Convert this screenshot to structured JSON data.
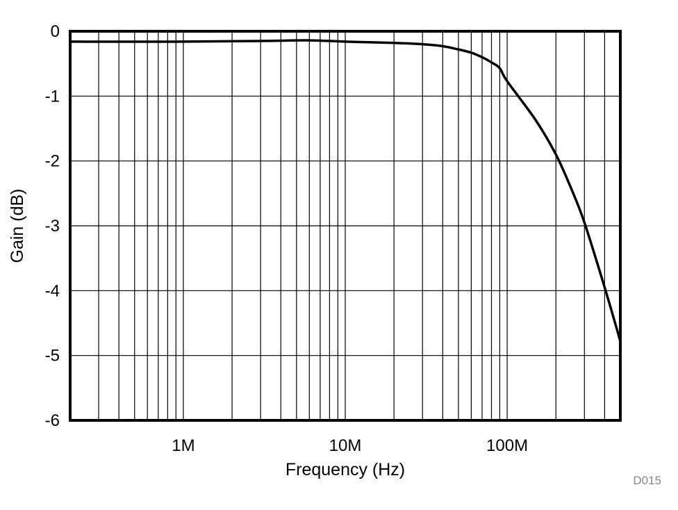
{
  "chart_data": {
    "type": "line",
    "title": "",
    "xlabel": "Frequency (Hz)",
    "ylabel": "Gain (dB)",
    "xscale": "log",
    "xlim": [
      200000,
      500000000
    ],
    "ylim": [
      -6,
      0
    ],
    "grid": true,
    "x_ticks": [
      {
        "value": 1000000,
        "label": "1M"
      },
      {
        "value": 10000000,
        "label": "10M"
      },
      {
        "value": 100000000,
        "label": "100M"
      }
    ],
    "y_ticks": [
      {
        "value": 0,
        "label": "0"
      },
      {
        "value": -1,
        "label": "-1"
      },
      {
        "value": -2,
        "label": "-2"
      },
      {
        "value": -3,
        "label": "-3"
      },
      {
        "value": -4,
        "label": "-4"
      },
      {
        "value": -5,
        "label": "-5"
      },
      {
        "value": -6,
        "label": "-6"
      }
    ],
    "series": [
      {
        "name": "Gain",
        "color": "#000000",
        "x": [
          200000,
          1000000,
          3000000,
          6000000,
          10000000,
          20000000,
          30000000,
          40000000,
          50000000,
          60000000,
          70000000,
          80000000,
          90000000,
          100000000,
          150000000,
          200000000,
          250000000,
          300000000,
          400000000,
          500000000
        ],
        "y": [
          -0.16,
          -0.16,
          -0.15,
          -0.14,
          -0.16,
          -0.18,
          -0.2,
          -0.23,
          -0.28,
          -0.33,
          -0.4,
          -0.48,
          -0.57,
          -0.77,
          -1.37,
          -1.9,
          -2.44,
          -2.95,
          -3.95,
          -4.78
        ]
      }
    ],
    "annotations": [
      "D015"
    ]
  }
}
